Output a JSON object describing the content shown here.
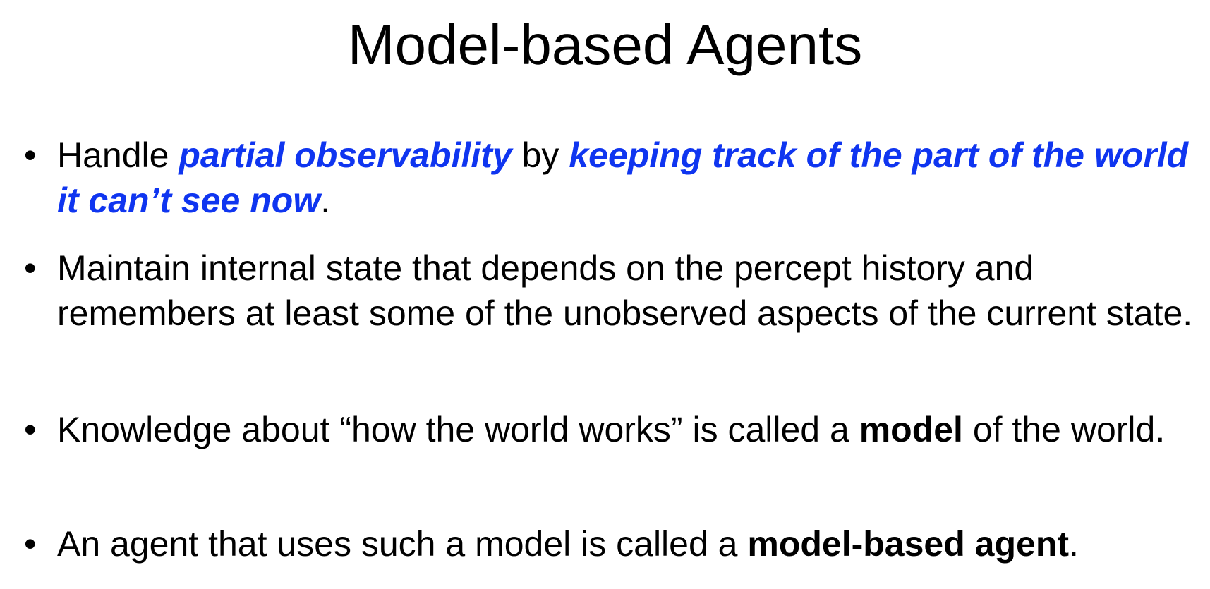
{
  "slide": {
    "title": "Model-based Agents",
    "bullet_marker": "•",
    "bullets": [
      {
        "parts": [
          "Handle ",
          "partial observability",
          " by ",
          "keeping track of the part of the world it can’t see now",
          "."
        ]
      },
      {
        "parts": [
          "Maintain internal state that depends on the percept history and remembers at least some of the unobserved aspects of the current state."
        ]
      },
      {
        "parts": [
          "Knowledge about “how the world works” is called a ",
          "model",
          " of the world."
        ]
      },
      {
        "parts": [
          "An agent that uses such a model is called a ",
          "model-based agent",
          "."
        ]
      }
    ]
  },
  "colors": {
    "emphasis_blue": "#0f35f0",
    "text": "#000000",
    "background": "#ffffff"
  }
}
